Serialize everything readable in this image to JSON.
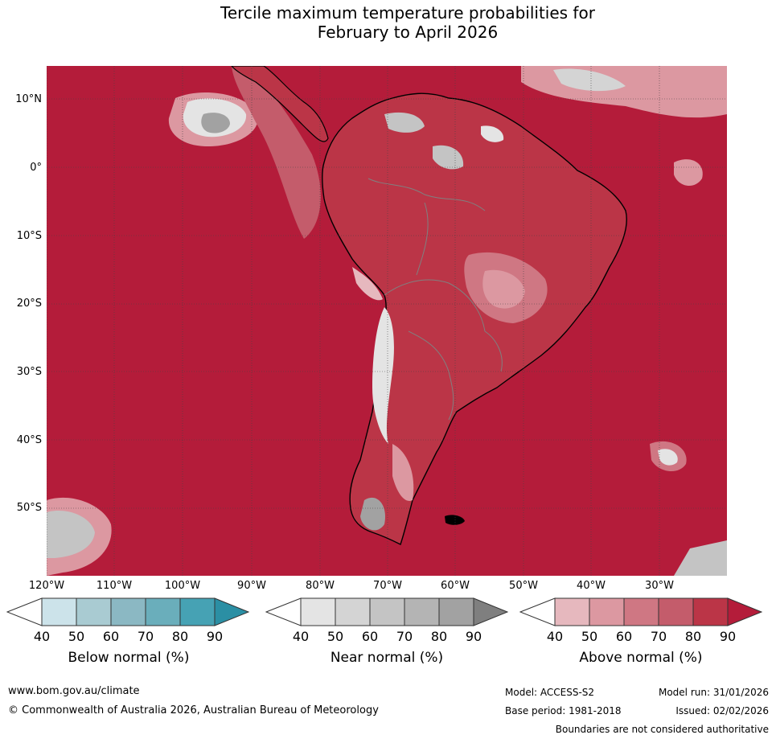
{
  "title_line1": "Tercile maximum temperature probabilities for",
  "title_line2": "February to April 2026",
  "lat_labels": [
    "10°N",
    "0°",
    "10°S",
    "20°S",
    "30°S",
    "40°S",
    "50°S"
  ],
  "lon_labels": [
    "120°W",
    "110°W",
    "100°W",
    "90°W",
    "80°W",
    "70°W",
    "60°W",
    "50°W",
    "40°W",
    "30°W"
  ],
  "colorbars": [
    {
      "title": "Below normal (%)",
      "ticks": [
        "40",
        "50",
        "60",
        "70",
        "80",
        "90"
      ],
      "colors": [
        "#cce3ea",
        "#a9cbd2",
        "#8bb8c3",
        "#6aaebb",
        "#46a2b4",
        "#2b8fa4"
      ]
    },
    {
      "title": "Near normal (%)",
      "ticks": [
        "40",
        "50",
        "60",
        "70",
        "80",
        "90"
      ],
      "colors": [
        "#e4e4e4",
        "#d4d4d4",
        "#c4c4c4",
        "#b4b4b4",
        "#a2a2a2",
        "#7f7f7f"
      ]
    },
    {
      "title": "Above normal (%)",
      "ticks": [
        "40",
        "50",
        "60",
        "70",
        "80",
        "90"
      ],
      "colors": [
        "#e6b8be",
        "#dc98a1",
        "#cf7783",
        "#c45c6b",
        "#bb3547",
        "#b41c3a"
      ]
    }
  ],
  "colors": {
    "ocean_above_90": "#b41c3a",
    "land_above_80": "#bb3547",
    "land_above_60": "#cf7783",
    "near_normal": "#c4c4c4",
    "coastline": "#000000",
    "borders": "#808080"
  },
  "footer": {
    "website": "www.bom.gov.au/climate",
    "copyright": "© Commonwealth of Australia 2026, Australian Bureau of Meteorology",
    "model": "Model: ACCESS-S2",
    "model_run": "Model run: 31/01/2026",
    "base_period": "Base period: 1981-2018",
    "issued": "Issued: 02/02/2026",
    "disclaimer": "Boundaries are not considered authoritative"
  }
}
